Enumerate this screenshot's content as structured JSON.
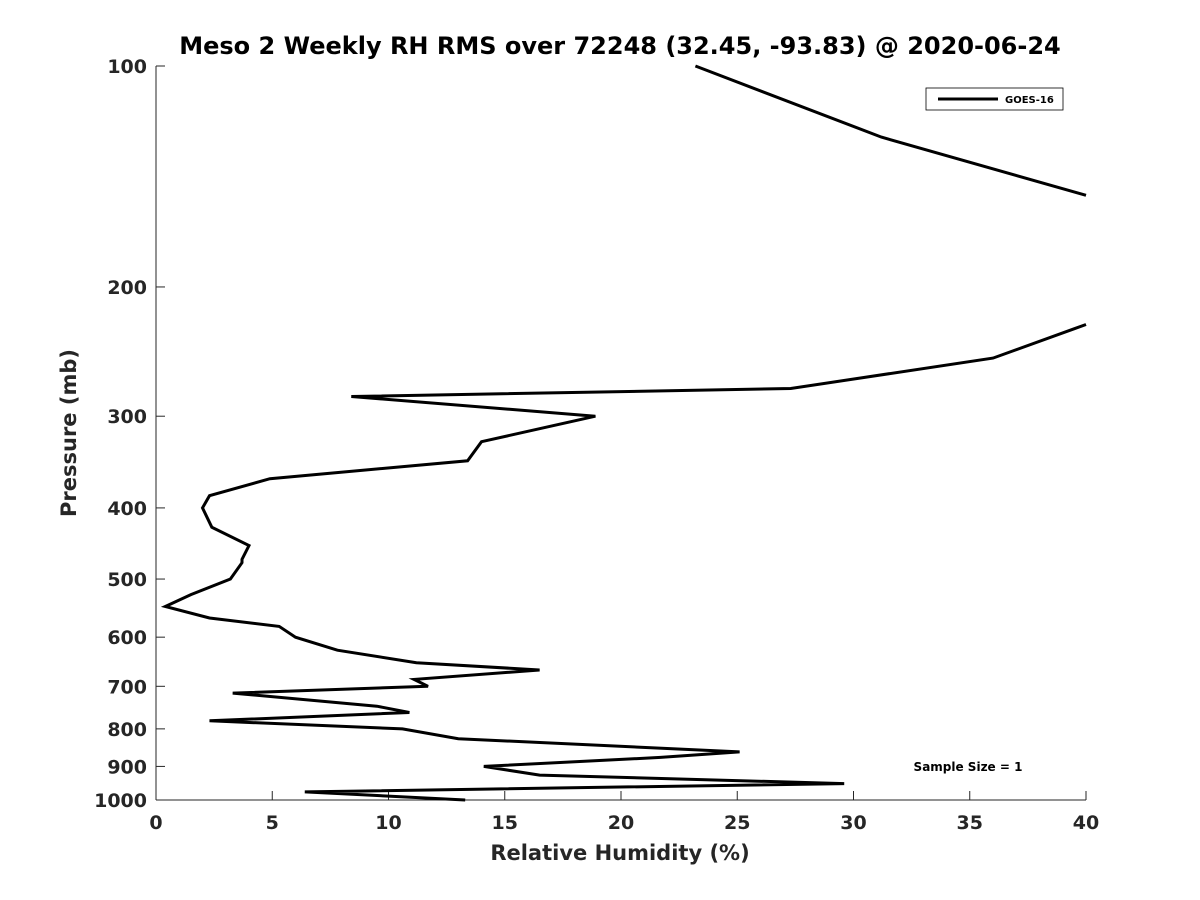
{
  "chart_data": {
    "type": "line",
    "title": "Meso 2 Weekly RH RMS over 72248 (32.45, -93.83) @ 2020-06-24",
    "xlabel": "Relative Humidity (%)",
    "ylabel": "Pressure (mb)",
    "xlim": [
      0,
      40
    ],
    "ylim": [
      100,
      1000
    ],
    "y_scale": "log",
    "y_reversed": true,
    "x_ticks": [
      0,
      5,
      10,
      15,
      20,
      25,
      30,
      35,
      40
    ],
    "y_ticks": [
      100,
      200,
      300,
      400,
      500,
      600,
      700,
      800,
      900,
      1000
    ],
    "grid": false,
    "legend_position": "top-right",
    "annotation": "Sample Size = 1",
    "series": [
      {
        "name": "GOES-16",
        "color": "#000000",
        "segments": [
          [
            {
              "x": 23.2,
              "y": 100
            },
            {
              "x": 31.2,
              "y": 125
            },
            {
              "x": 40.0,
              "y": 150
            }
          ],
          [
            {
              "x": 40.0,
              "y": 225
            },
            {
              "x": 39.5,
              "y": 228
            },
            {
              "x": 36.0,
              "y": 250
            },
            {
              "x": 27.3,
              "y": 275
            },
            {
              "x": 8.4,
              "y": 282
            },
            {
              "x": 18.9,
              "y": 300
            },
            {
              "x": 14.0,
              "y": 325
            },
            {
              "x": 13.4,
              "y": 345
            },
            {
              "x": 4.9,
              "y": 365
            },
            {
              "x": 2.3,
              "y": 385
            },
            {
              "x": 2.0,
              "y": 400
            },
            {
              "x": 2.4,
              "y": 425
            },
            {
              "x": 4.0,
              "y": 450
            },
            {
              "x": 3.7,
              "y": 470
            },
            {
              "x": 3.7,
              "y": 475
            },
            {
              "x": 3.2,
              "y": 500
            },
            {
              "x": 1.5,
              "y": 525
            },
            {
              "x": 0.4,
              "y": 545
            },
            {
              "x": 2.3,
              "y": 565
            },
            {
              "x": 5.3,
              "y": 580
            },
            {
              "x": 6.0,
              "y": 600
            },
            {
              "x": 7.8,
              "y": 625
            },
            {
              "x": 11.2,
              "y": 650
            },
            {
              "x": 16.5,
              "y": 665
            },
            {
              "x": 11.1,
              "y": 685
            },
            {
              "x": 11.7,
              "y": 700
            },
            {
              "x": 3.3,
              "y": 715
            },
            {
              "x": 9.5,
              "y": 745
            },
            {
              "x": 10.9,
              "y": 760
            },
            {
              "x": 2.3,
              "y": 780
            },
            {
              "x": 10.6,
              "y": 800
            },
            {
              "x": 13.0,
              "y": 825
            },
            {
              "x": 25.1,
              "y": 860
            },
            {
              "x": 21.7,
              "y": 875
            },
            {
              "x": 14.1,
              "y": 900
            },
            {
              "x": 16.5,
              "y": 925
            },
            {
              "x": 29.6,
              "y": 950
            },
            {
              "x": 6.4,
              "y": 975
            },
            {
              "x": 13.3,
              "y": 1000
            }
          ]
        ]
      }
    ]
  }
}
